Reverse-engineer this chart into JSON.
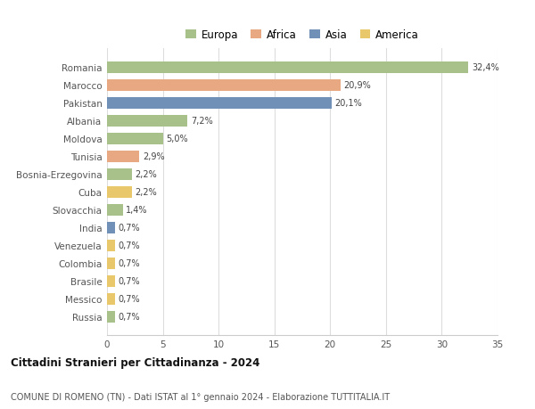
{
  "categories": [
    "Romania",
    "Marocco",
    "Pakistan",
    "Albania",
    "Moldova",
    "Tunisia",
    "Bosnia-Erzegovina",
    "Cuba",
    "Slovacchia",
    "India",
    "Venezuela",
    "Colombia",
    "Brasile",
    "Messico",
    "Russia"
  ],
  "values": [
    32.4,
    20.9,
    20.1,
    7.2,
    5.0,
    2.9,
    2.2,
    2.2,
    1.4,
    0.7,
    0.7,
    0.7,
    0.7,
    0.7,
    0.7
  ],
  "labels": [
    "32,4%",
    "20,9%",
    "20,1%",
    "7,2%",
    "5,0%",
    "2,9%",
    "2,2%",
    "2,2%",
    "1,4%",
    "0,7%",
    "0,7%",
    "0,7%",
    "0,7%",
    "0,7%",
    "0,7%"
  ],
  "colors": [
    "#a8c08a",
    "#e8a882",
    "#7090b8",
    "#a8c08a",
    "#a8c08a",
    "#e8a882",
    "#a8c08a",
    "#e8c86a",
    "#a8c08a",
    "#7090b8",
    "#e8c86a",
    "#e8c86a",
    "#e8c86a",
    "#e8c86a",
    "#a8c08a"
  ],
  "legend_labels": [
    "Europa",
    "Africa",
    "Asia",
    "America"
  ],
  "legend_colors": [
    "#a8c08a",
    "#e8a882",
    "#7090b8",
    "#e8c86a"
  ],
  "title": "Cittadini Stranieri per Cittadinanza - 2024",
  "subtitle": "COMUNE DI ROMENO (TN) - Dati ISTAT al 1° gennaio 2024 - Elaborazione TUTTITALIA.IT",
  "xlim": [
    0,
    35
  ],
  "xticks": [
    0,
    5,
    10,
    15,
    20,
    25,
    30,
    35
  ],
  "bg_color": "#ffffff",
  "grid_color": "#dddddd",
  "bar_height": 0.65
}
